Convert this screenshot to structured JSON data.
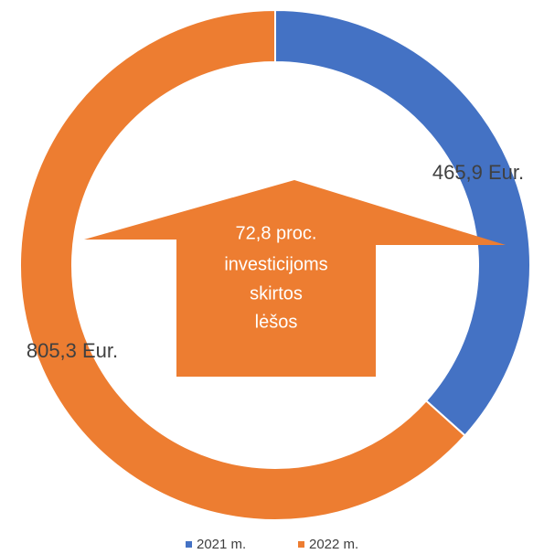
{
  "chart_data": {
    "type": "donut",
    "categories": [
      "2021 m.",
      "2022 m."
    ],
    "values": [
      465.9,
      805.3
    ],
    "value_labels": [
      "465,9 Eur.",
      "805,3 Eur."
    ],
    "colors": [
      "#4472c4",
      "#ed7d31"
    ],
    "annotation": [
      "72,8 proc.",
      "investicijoms",
      "skirtos",
      "lėšos"
    ],
    "legend": "bottom"
  }
}
